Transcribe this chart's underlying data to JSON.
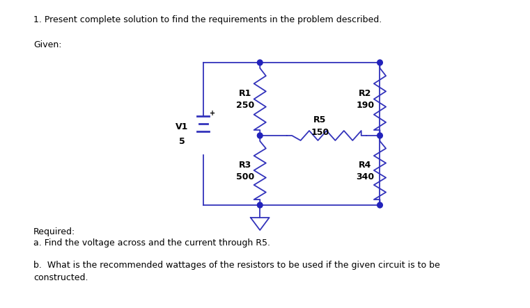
{
  "title_text": "1. Present complete solution to find the requirements in the problem described.",
  "given_text": "Given:",
  "required_text": "Required:",
  "req_a": "a. Find the voltage across and the current through R5.",
  "req_b": "b.  What is the recommended wattages of the resistors to be used if the given circuit is to be\nconstructed.",
  "circuit_color": "#3333bb",
  "text_color": "#000000",
  "node_color": "#2222bb",
  "bg_color": "#ffffff",
  "V1_label": "V1",
  "V1_value": "5",
  "R1_label": "R1",
  "R1_value": "250",
  "R2_label": "R2",
  "R2_value": "190",
  "R3_label": "R3",
  "R3_value": "500",
  "R4_label": "R4",
  "R4_value": "340",
  "R5_label": "R5",
  "R5_value": "150",
  "circuit_lw": 1.3
}
